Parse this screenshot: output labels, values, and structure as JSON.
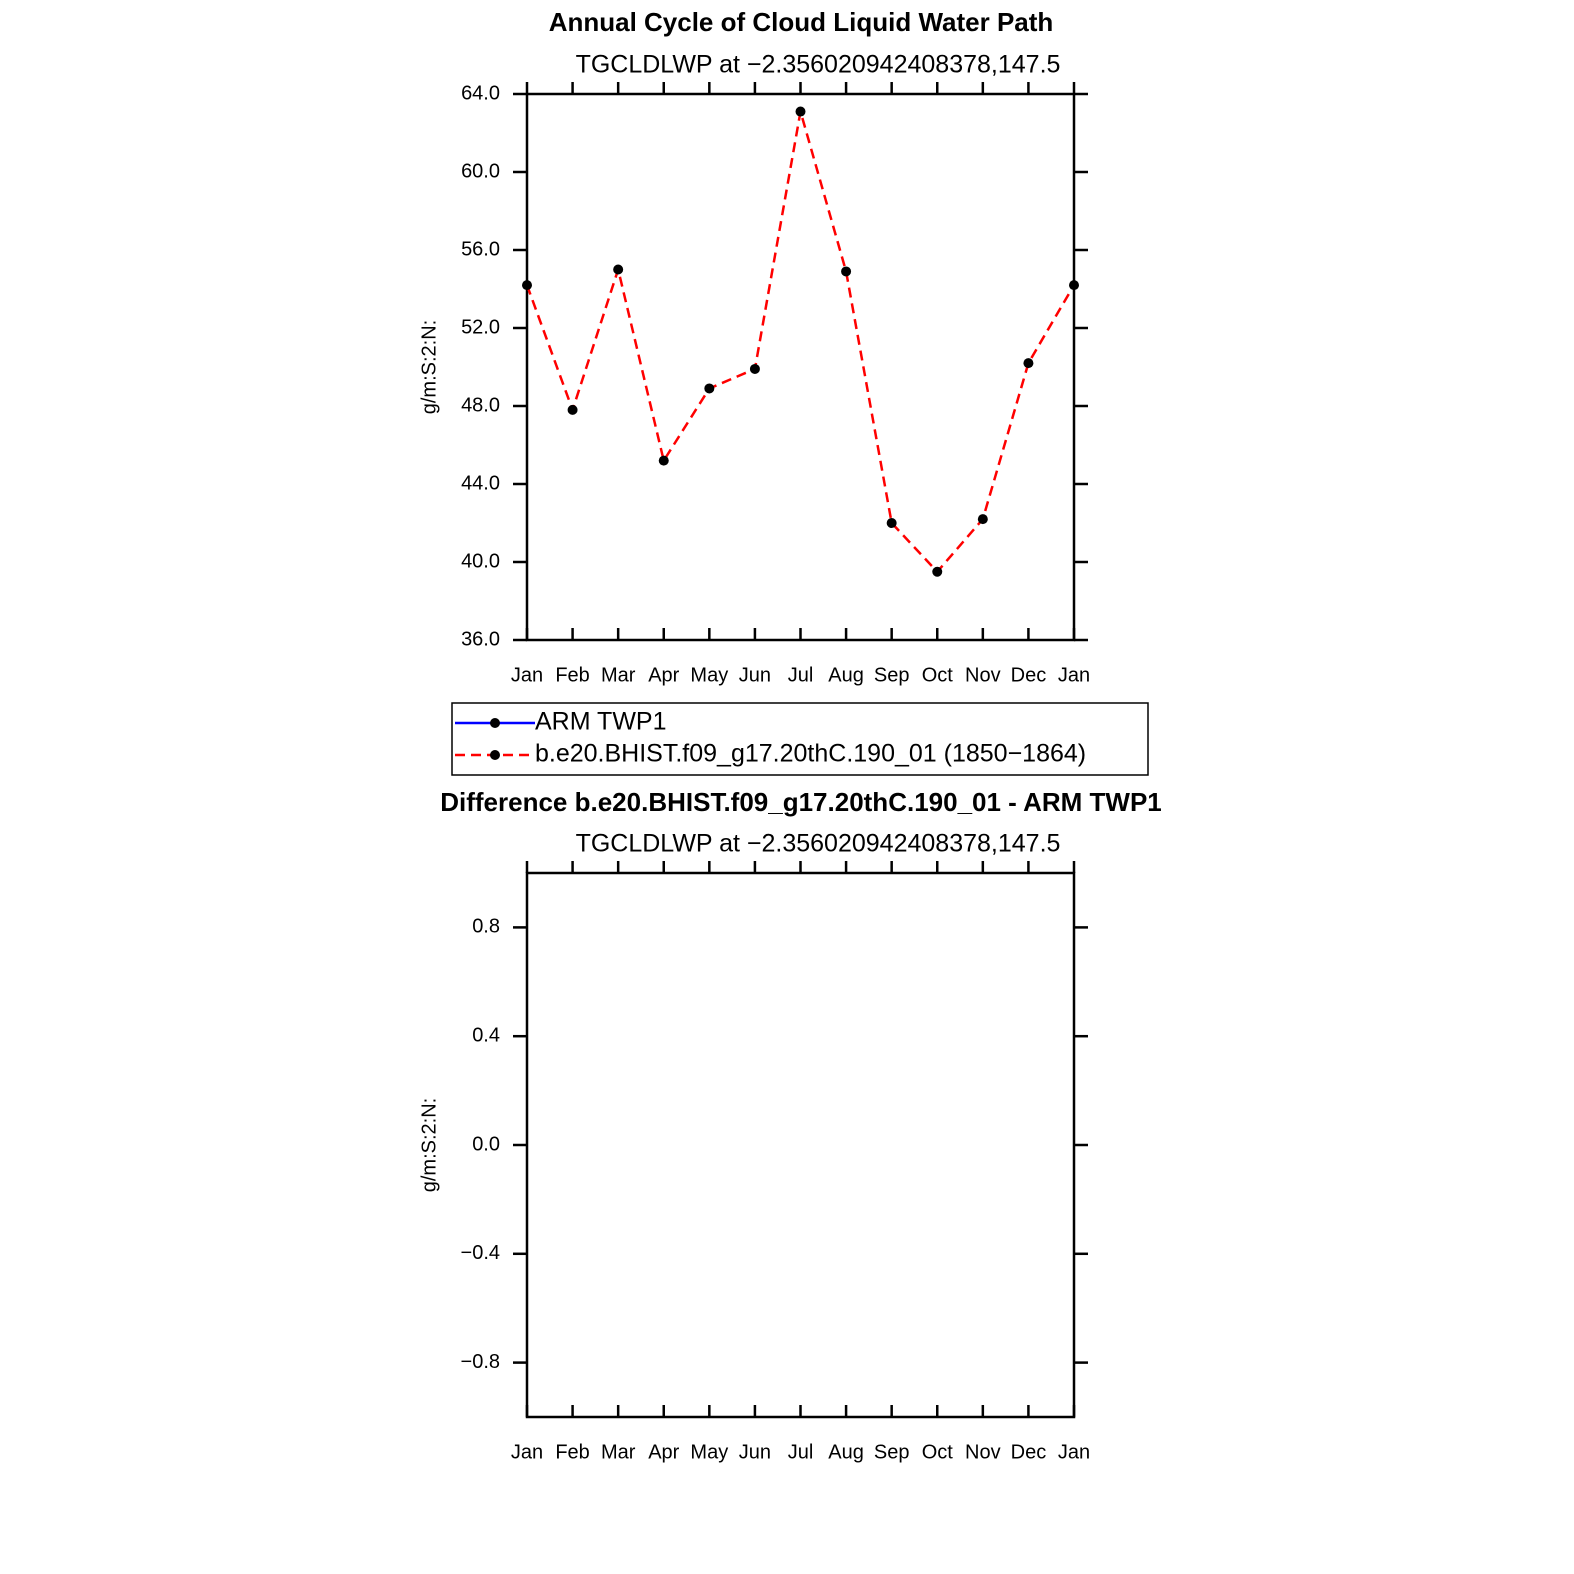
{
  "chart_data": [
    {
      "type": "line",
      "title": "Annual Cycle of Cloud Liquid Water Path",
      "subtitle": "TGCLDLWP  at  −2.356020942408378,147.5",
      "y_label": "g/m:S:2:N:",
      "categories": [
        "Jan",
        "Feb",
        "Mar",
        "Apr",
        "May",
        "Jun",
        "Jul",
        "Aug",
        "Sep",
        "Oct",
        "Nov",
        "Dec",
        "Jan"
      ],
      "series": [
        {
          "name": "ARM  TWP1",
          "color": "#0000ff",
          "linestyle": "solid",
          "values": [
            null,
            null,
            null,
            null,
            null,
            null,
            null,
            null,
            null,
            null,
            null,
            null,
            null
          ]
        },
        {
          "name": "b.e20.BHIST.f09_g17.20thC.190_01  (1850−1864)",
          "color": "#ff0000",
          "linestyle": "dashed",
          "values": [
            54.2,
            47.8,
            55.0,
            45.2,
            48.9,
            49.9,
            63.1,
            54.9,
            42.0,
            39.5,
            42.2,
            50.2,
            54.2
          ]
        }
      ],
      "marker_color": "#000000",
      "ylim": [
        36,
        64
      ],
      "yticks": [
        {
          "value": 36,
          "label": "36.0"
        },
        {
          "value": 40,
          "label": "40.0"
        },
        {
          "value": 44,
          "label": "44.0"
        },
        {
          "value": 48,
          "label": "48.0"
        },
        {
          "value": 52,
          "label": "52.0"
        },
        {
          "value": 56,
          "label": "56.0"
        },
        {
          "value": 60,
          "label": "60.0"
        },
        {
          "value": 64,
          "label": "64.0"
        }
      ],
      "legend": "bottom"
    },
    {
      "type": "line",
      "title": "Difference b.e20.BHIST.f09_g17.20thC.190_01 - ARM TWP1",
      "subtitle": "TGCLDLWP  at  −2.356020942408378,147.5",
      "y_label": "g/m:S:2:N:",
      "categories": [
        "Jan",
        "Feb",
        "Mar",
        "Apr",
        "May",
        "Jun",
        "Jul",
        "Aug",
        "Sep",
        "Oct",
        "Nov",
        "Dec",
        "Jan"
      ],
      "ylim": [
        -1,
        1
      ],
      "yticks": [
        {
          "value": -0.8,
          "label": "−0.8"
        },
        {
          "value": -0.4,
          "label": "−0.4"
        },
        {
          "value": 0,
          "label": "0.0"
        },
        0.4,
        0.8
      ]
    }
  ]
}
